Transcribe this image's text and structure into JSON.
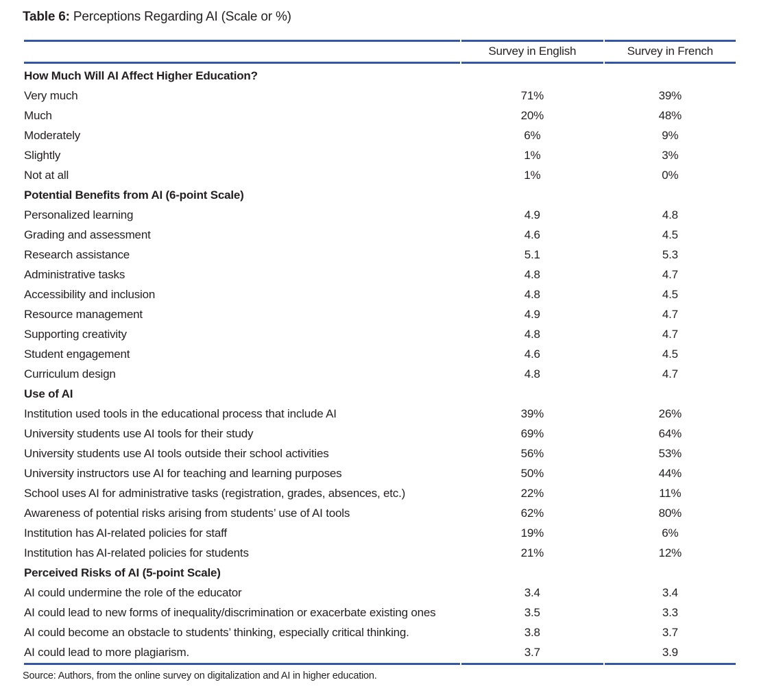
{
  "title": {
    "label": "Table 6:",
    "text": "Perceptions Regarding AI (Scale or %)"
  },
  "table": {
    "columns": [
      "",
      "Survey in English",
      "Survey in French"
    ],
    "rows": [
      {
        "type": "section",
        "label": "How Much Will AI Affect Higher Education?"
      },
      {
        "type": "data",
        "label": "Very much",
        "english": "71%",
        "french": "39%"
      },
      {
        "type": "data",
        "label": "Much",
        "english": "20%",
        "french": "48%"
      },
      {
        "type": "data",
        "label": "Moderately",
        "english": "6%",
        "french": "9%"
      },
      {
        "type": "data",
        "label": "Slightly",
        "english": "1%",
        "french": "3%"
      },
      {
        "type": "data",
        "label": "Not at all",
        "english": "1%",
        "french": "0%"
      },
      {
        "type": "section",
        "label": "Potential Benefits from AI (6-point Scale)"
      },
      {
        "type": "data",
        "label": "Personalized learning",
        "english": "4.9",
        "french": "4.8"
      },
      {
        "type": "data",
        "label": "Grading and assessment",
        "english": "4.6",
        "french": "4.5"
      },
      {
        "type": "data",
        "label": "Research assistance",
        "english": "5.1",
        "french": "5.3"
      },
      {
        "type": "data",
        "label": "Administrative tasks",
        "english": "4.8",
        "french": "4.7"
      },
      {
        "type": "data",
        "label": "Accessibility and inclusion",
        "english": "4.8",
        "french": "4.5"
      },
      {
        "type": "data",
        "label": "Resource management",
        "english": "4.9",
        "french": "4.7"
      },
      {
        "type": "data",
        "label": "Supporting creativity",
        "english": "4.8",
        "french": "4.7"
      },
      {
        "type": "data",
        "label": "Student engagement",
        "english": "4.6",
        "french": "4.5"
      },
      {
        "type": "data",
        "label": "Curriculum design",
        "english": "4.8",
        "french": "4.7"
      },
      {
        "type": "section",
        "label": "Use of AI"
      },
      {
        "type": "data",
        "label": "Institution used tools in the educational process that include AI",
        "english": "39%",
        "french": "26%"
      },
      {
        "type": "data",
        "label": "University students use AI tools for their study",
        "english": "69%",
        "french": "64%"
      },
      {
        "type": "data",
        "label": "University students use AI tools outside their school activities",
        "english": "56%",
        "french": "53%"
      },
      {
        "type": "data",
        "label": "University instructors use AI for teaching and learning purposes",
        "english": "50%",
        "french": "44%"
      },
      {
        "type": "data",
        "label": "School uses AI for administrative tasks (registration, grades, absences, etc.)",
        "english": "22%",
        "french": "11%"
      },
      {
        "type": "data",
        "label": "Awareness of potential risks arising from students’ use of AI tools",
        "english": "62%",
        "french": "80%"
      },
      {
        "type": "data",
        "label": "Institution has AI-related policies for staff",
        "english": "19%",
        "french": "6%"
      },
      {
        "type": "data",
        "label": "Institution has AI-related policies for students",
        "english": "21%",
        "french": "12%"
      },
      {
        "type": "section",
        "label": "Perceived Risks of AI (5-point Scale)"
      },
      {
        "type": "data",
        "label": "AI could undermine the role of the educator",
        "english": "3.4",
        "french": "3.4"
      },
      {
        "type": "data",
        "label": "AI could lead to new forms of inequality/discrimination or exacerbate existing ones",
        "english": "3.5",
        "french": "3.3"
      },
      {
        "type": "data",
        "label": "AI could become an obstacle to students’ thinking, especially critical thinking.",
        "english": "3.8",
        "french": "3.7"
      },
      {
        "type": "data",
        "label": "AI could lead to more plagiarism.",
        "english": "3.7",
        "french": "3.9"
      }
    ]
  },
  "footer": {
    "source": "Source: Authors, from the online survey on digitalization and AI in higher education."
  },
  "colors": {
    "rule_blue": "#3556a5",
    "text": "#231f20"
  }
}
